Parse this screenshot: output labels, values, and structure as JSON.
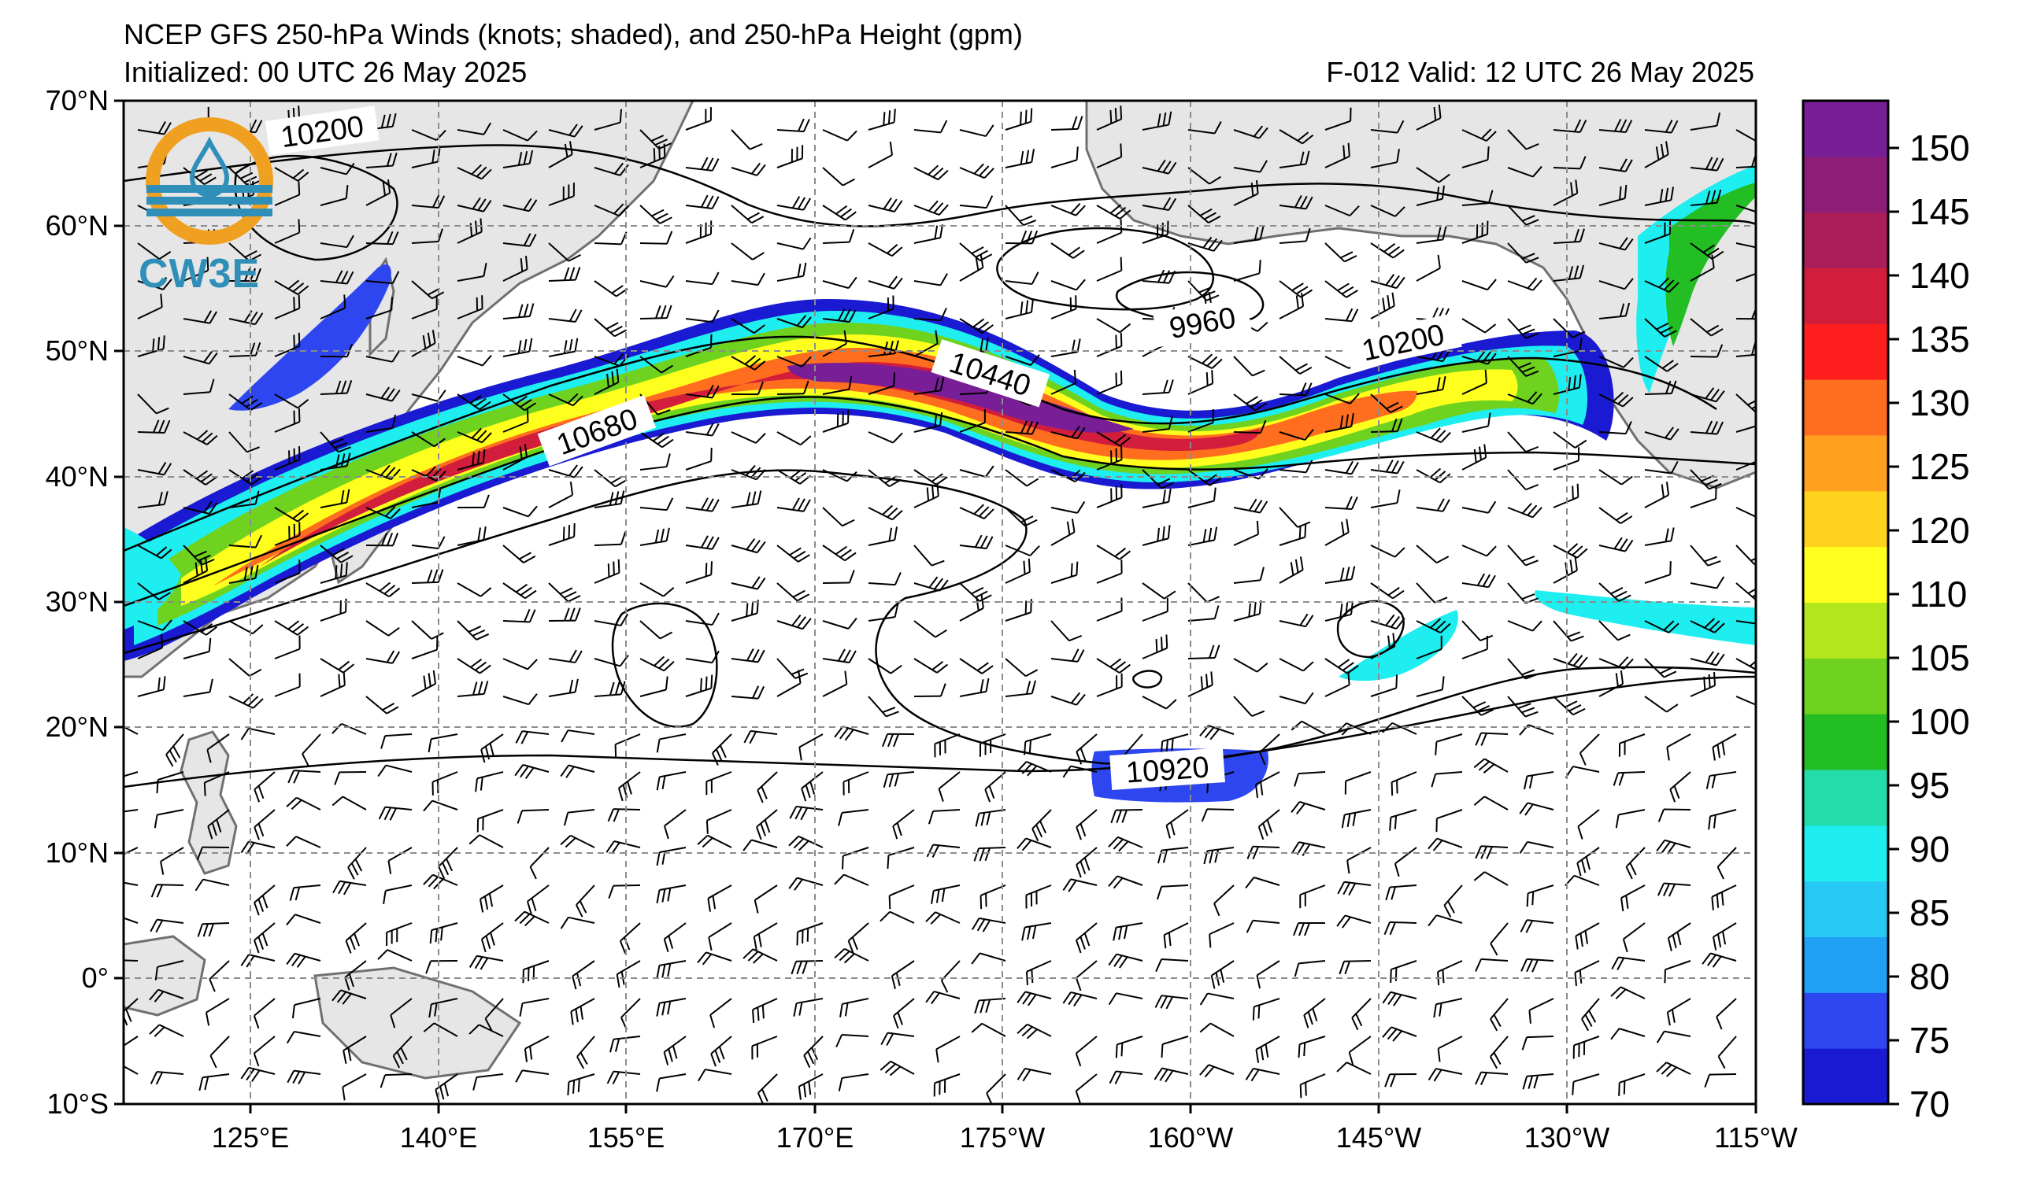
{
  "header": {
    "title": "NCEP GFS 250-hPa Winds (knots; shaded), and 250-hPa Height (gpm)",
    "initialized": "Initialized: 00 UTC 26 May 2025",
    "valid": "F-012  Valid: 12 UTC 26 May 2025"
  },
  "logo": {
    "text": "CW3E",
    "icon": "cw3e-water-drop-logo"
  },
  "axes": {
    "lat_labels": [
      "70°N",
      "60°N",
      "50°N",
      "40°N",
      "30°N",
      "20°N",
      "10°N",
      "0°",
      "10°S"
    ],
    "lon_labels": [
      "125°E",
      "140°E",
      "155°E",
      "170°E",
      "175°W",
      "160°W",
      "145°W",
      "130°W",
      "115°W"
    ]
  },
  "contour_labels": [
    "10200",
    "9960",
    "10200",
    "10440",
    "10680",
    "10920"
  ],
  "colorbar": {
    "labels": [
      "70",
      "75",
      "80",
      "85",
      "90",
      "95",
      "100",
      "105",
      "110",
      "120",
      "125",
      "130",
      "135",
      "140",
      "145",
      "150"
    ],
    "colors": [
      "#1a1ad2",
      "#2e46f0",
      "#1ea0f5",
      "#28c8f5",
      "#1eeef0",
      "#23dcaa",
      "#23be23",
      "#6ed21e",
      "#b4e61e",
      "#ffff1e",
      "#ffd21e",
      "#ffa01e",
      "#ff6e1e",
      "#ff1e1e",
      "#d21e3c",
      "#aa1e5a",
      "#8c1e78",
      "#781e96"
    ]
  },
  "colors": {
    "land": "#e6e6e6",
    "coast": "#707070",
    "grid": "#8c8c8c"
  }
}
